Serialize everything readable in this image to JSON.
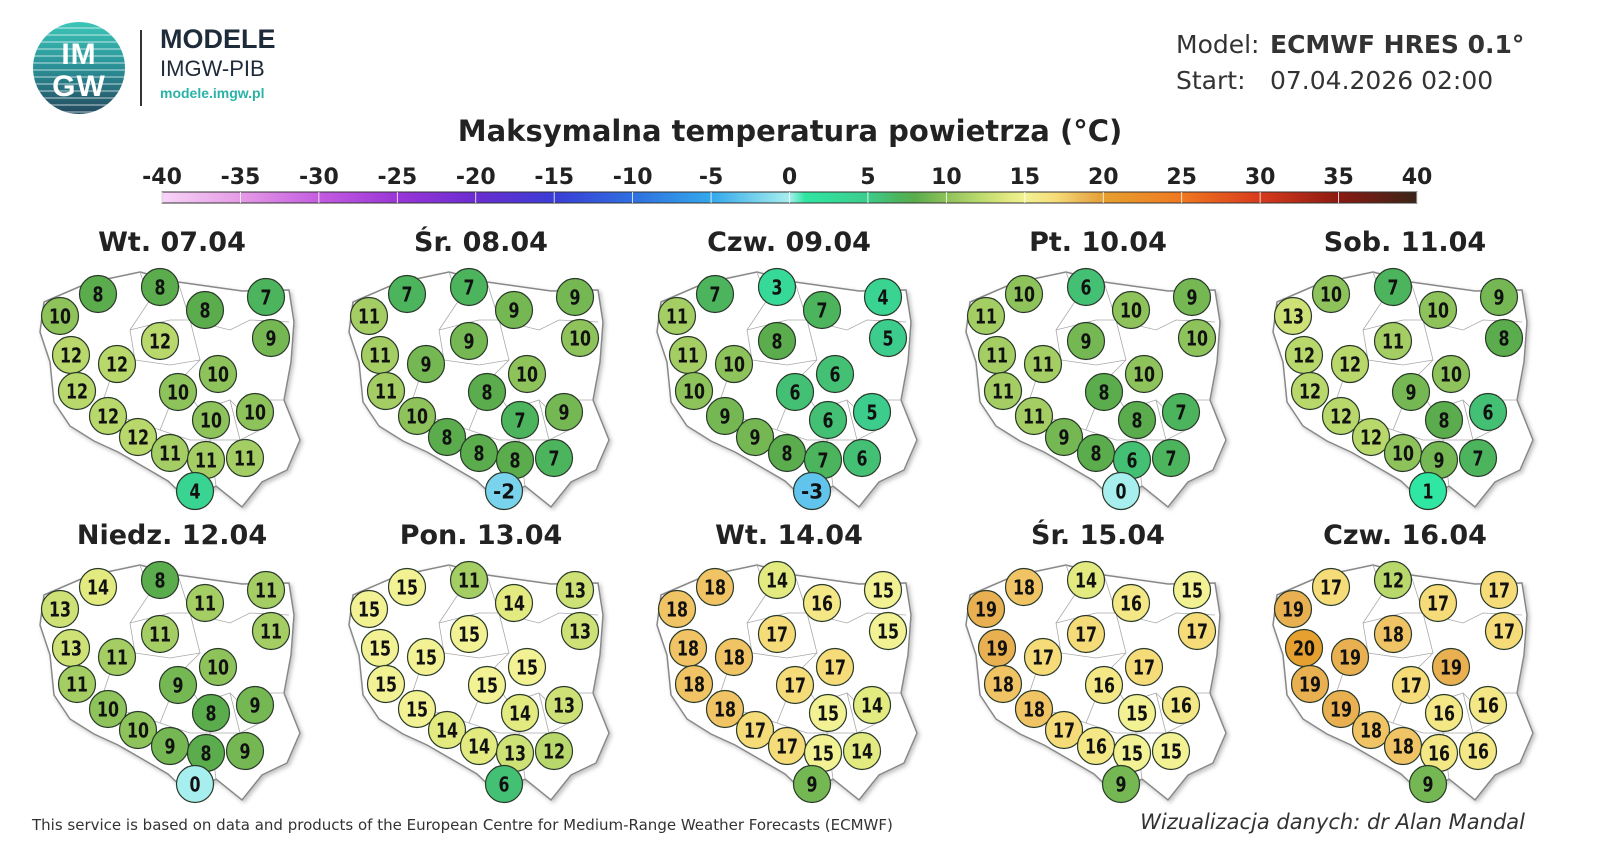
{
  "header": {
    "logo_text_top": "IM",
    "logo_text_bottom": "GW",
    "brand_title": "MODELE",
    "brand_subtitle": "IMGW-PIB",
    "brand_url": "modele.imgw.pl",
    "model_label": "Model:",
    "model_value": "ECMWF HRES 0.1°",
    "start_label": "Start:",
    "start_value": "07.04.2026 02:00"
  },
  "footer": {
    "source": "This service is based on data and products of the European Centre for Medium-Range Weather Forecasts (ECMWF)",
    "credit": "Wizualizacja danych: dr Alan Mandal"
  },
  "chart_data": {
    "type": "map-station-values",
    "title": "Maksymalna temperatura powietrza (°C)",
    "colorbar": {
      "ticks": [
        "-40",
        "-35",
        "-30",
        "-25",
        "-20",
        "-15",
        "-10",
        "-5",
        "0",
        "5",
        "10",
        "15",
        "20",
        "25",
        "30",
        "35",
        "40"
      ],
      "range": [
        -40,
        40
      ],
      "stops": [
        {
          "v": -40,
          "c": "#f7d4f7"
        },
        {
          "v": -35,
          "c": "#e59be6"
        },
        {
          "v": -30,
          "c": "#c45ce0"
        },
        {
          "v": -25,
          "c": "#9a35d8"
        },
        {
          "v": -20,
          "c": "#6a2dd0"
        },
        {
          "v": -15,
          "c": "#3a3cd6"
        },
        {
          "v": -10,
          "c": "#2f6fe0"
        },
        {
          "v": -5,
          "c": "#33a8ec"
        },
        {
          "v": 0,
          "c": "#a7efee"
        },
        {
          "v": 1,
          "c": "#2fe6a2"
        },
        {
          "v": 5,
          "c": "#3ccc8c"
        },
        {
          "v": 7,
          "c": "#4cb45c"
        },
        {
          "v": 8,
          "c": "#5aac4c"
        },
        {
          "v": 10,
          "c": "#8ec25a"
        },
        {
          "v": 12,
          "c": "#b9d86c"
        },
        {
          "v": 14,
          "c": "#e2ea80"
        },
        {
          "v": 15,
          "c": "#f2f294"
        },
        {
          "v": 17,
          "c": "#f6dc78"
        },
        {
          "v": 18,
          "c": "#f0c464"
        },
        {
          "v": 19,
          "c": "#e8b050"
        },
        {
          "v": 20,
          "c": "#e6a030"
        },
        {
          "v": 25,
          "c": "#f07820"
        },
        {
          "v": 30,
          "c": "#d83a1c"
        },
        {
          "v": 35,
          "c": "#8c1a12"
        },
        {
          "v": 40,
          "c": "#3a2418"
        }
      ]
    },
    "panels": [
      {
        "date": "Wt. 07.04",
        "values": [
          10,
          8,
          8,
          8,
          7,
          9,
          12,
          12,
          12,
          12,
          10,
          10,
          10,
          10,
          12,
          12,
          11,
          11,
          11,
          4
        ]
      },
      {
        "date": "Śr. 08.04",
        "values": [
          11,
          7,
          7,
          9,
          9,
          10,
          9,
          11,
          9,
          11,
          10,
          8,
          9,
          7,
          10,
          8,
          8,
          8,
          7,
          -2
        ]
      },
      {
        "date": "Czw. 09.04",
        "values": [
          11,
          7,
          3,
          7,
          4,
          5,
          8,
          11,
          10,
          10,
          6,
          6,
          5,
          6,
          9,
          9,
          8,
          7,
          6,
          -3
        ]
      },
      {
        "date": "Pt. 10.04",
        "values": [
          11,
          10,
          6,
          10,
          9,
          10,
          9,
          11,
          11,
          11,
          10,
          8,
          7,
          8,
          11,
          9,
          8,
          6,
          7,
          0
        ]
      },
      {
        "date": "Sob. 11.04",
        "values": [
          13,
          10,
          7,
          10,
          9,
          8,
          11,
          12,
          12,
          12,
          10,
          9,
          6,
          8,
          12,
          12,
          10,
          9,
          7,
          1
        ]
      },
      {
        "date": "Niedz. 12.04",
        "values": [
          13,
          14,
          8,
          11,
          11,
          11,
          11,
          13,
          11,
          11,
          10,
          9,
          9,
          8,
          10,
          10,
          9,
          8,
          9,
          0
        ]
      },
      {
        "date": "Pon. 13.04",
        "values": [
          15,
          15,
          11,
          14,
          13,
          13,
          15,
          15,
          15,
          15,
          15,
          15,
          13,
          14,
          15,
          14,
          14,
          13,
          12,
          6
        ]
      },
      {
        "date": "Wt. 14.04",
        "values": [
          18,
          18,
          14,
          16,
          15,
          15,
          17,
          18,
          18,
          18,
          17,
          17,
          14,
          15,
          18,
          17,
          17,
          15,
          14,
          9
        ]
      },
      {
        "date": "Śr. 15.04",
        "values": [
          19,
          18,
          14,
          16,
          15,
          17,
          17,
          19,
          17,
          18,
          17,
          16,
          16,
          15,
          18,
          17,
          16,
          15,
          15,
          9
        ]
      },
      {
        "date": "Czw. 16.04",
        "values": [
          19,
          17,
          12,
          17,
          17,
          17,
          18,
          20,
          19,
          19,
          19,
          17,
          16,
          16,
          19,
          18,
          18,
          16,
          16,
          9
        ]
      }
    ]
  }
}
